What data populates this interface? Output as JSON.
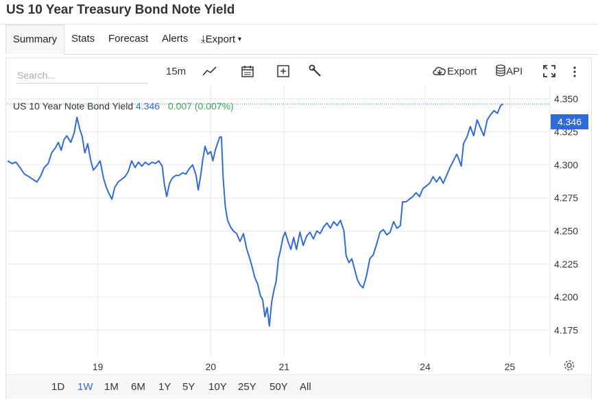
{
  "page": {
    "title": "US 10 Year Treasury Bond Note Yield"
  },
  "tabs": [
    {
      "label": "Summary",
      "active": true
    },
    {
      "label": "Stats",
      "active": false
    },
    {
      "label": "Forecast",
      "active": false
    },
    {
      "label": "Alerts",
      "active": false
    },
    {
      "label": "Export",
      "active": false
    }
  ],
  "toolbar": {
    "search_placeholder": "Search...",
    "interval": "15m",
    "export_label": "Export",
    "api_label": "API",
    "icons": [
      "line-chart-icon",
      "calendar-icon",
      "plus-box-icon",
      "wrench-icon",
      "cloud-download-icon",
      "database-icon",
      "fullscreen-icon",
      "more-vertical-icon"
    ]
  },
  "legend": {
    "name": "US 10 Year Note Bond Yield",
    "value": "4.346",
    "change": "0.007 (0.007%)"
  },
  "price_tag": "4.346",
  "range_buttons": [
    {
      "label": "1D",
      "active": false
    },
    {
      "label": "1W",
      "active": true
    },
    {
      "label": "1M",
      "active": false
    },
    {
      "label": "6M",
      "active": false
    },
    {
      "label": "1Y",
      "active": false
    },
    {
      "label": "5Y",
      "active": false
    },
    {
      "label": "10Y",
      "active": false
    },
    {
      "label": "25Y",
      "active": false
    },
    {
      "label": "50Y",
      "active": false
    },
    {
      "label": "All",
      "active": false
    }
  ],
  "colors": {
    "line": "#2e6ad8",
    "accent": "#2e6ad8",
    "change_positive": "#3aa84a",
    "grid": "#e6e6e6"
  },
  "chart_data": {
    "type": "line",
    "title": "",
    "xlabel": "",
    "ylabel": "",
    "ylim": [
      4.155,
      4.36
    ],
    "y_ticks": [
      "4.175",
      "4.200",
      "4.225",
      "4.250",
      "4.275",
      "4.300",
      "4.325",
      "4.350"
    ],
    "x_ticks": [
      {
        "label": "19",
        "x": 2.0
      },
      {
        "label": "20",
        "x": 4.0
      },
      {
        "label": "21",
        "x": 5.3
      },
      {
        "label": "24",
        "x": 7.8
      },
      {
        "label": "25",
        "x": 9.3
      }
    ],
    "xlim": [
      0.4,
      10.0
    ],
    "grid": true,
    "last_value": 4.346,
    "series": [
      {
        "name": "US 10 Year Note Bond Yield",
        "points": [
          [
            0.4,
            4.303
          ],
          [
            0.48,
            4.301
          ],
          [
            0.55,
            4.302
          ],
          [
            0.62,
            4.298
          ],
          [
            0.7,
            4.293
          ],
          [
            0.78,
            4.291
          ],
          [
            0.85,
            4.289
          ],
          [
            0.92,
            4.287
          ],
          [
            0.98,
            4.291
          ],
          [
            1.05,
            4.298
          ],
          [
            1.12,
            4.301
          ],
          [
            1.18,
            4.309
          ],
          [
            1.25,
            4.313
          ],
          [
            1.3,
            4.317
          ],
          [
            1.35,
            4.311
          ],
          [
            1.4,
            4.319
          ],
          [
            1.45,
            4.322
          ],
          [
            1.52,
            4.317
          ],
          [
            1.58,
            4.324
          ],
          [
            1.63,
            4.336
          ],
          [
            1.68,
            4.327
          ],
          [
            1.72,
            4.322
          ],
          [
            1.77,
            4.309
          ],
          [
            1.82,
            4.316
          ],
          [
            1.87,
            4.304
          ],
          [
            1.92,
            4.296
          ],
          [
            1.98,
            4.299
          ],
          [
            2.04,
            4.303
          ],
          [
            2.1,
            4.29
          ],
          [
            2.15,
            4.283
          ],
          [
            2.2,
            4.278
          ],
          [
            2.25,
            4.274
          ],
          [
            2.3,
            4.283
          ],
          [
            2.36,
            4.287
          ],
          [
            2.42,
            4.289
          ],
          [
            2.48,
            4.291
          ],
          [
            2.54,
            4.295
          ],
          [
            2.6,
            4.303
          ],
          [
            2.66,
            4.298
          ],
          [
            2.72,
            4.302
          ],
          [
            2.78,
            4.299
          ],
          [
            2.84,
            4.302
          ],
          [
            2.9,
            4.3
          ],
          [
            2.96,
            4.302
          ],
          [
            3.02,
            4.301
          ],
          [
            3.08,
            4.303
          ],
          [
            3.14,
            4.299
          ],
          [
            3.18,
            4.285
          ],
          [
            3.22,
            4.276
          ],
          [
            3.27,
            4.286
          ],
          [
            3.32,
            4.29
          ],
          [
            3.38,
            4.292
          ],
          [
            3.44,
            4.292
          ],
          [
            3.5,
            4.294
          ],
          [
            3.56,
            4.293
          ],
          [
            3.62,
            4.297
          ],
          [
            3.68,
            4.3
          ],
          [
            3.74,
            4.292
          ],
          [
            3.78,
            4.281
          ],
          [
            3.82,
            4.291
          ],
          [
            3.86,
            4.304
          ],
          [
            3.9,
            4.314
          ],
          [
            3.95,
            4.308
          ],
          [
            4.0,
            4.31
          ],
          [
            4.04,
            4.303
          ],
          [
            4.08,
            4.311
          ],
          [
            4.12,
            4.316
          ],
          [
            4.16,
            4.321
          ],
          [
            4.19,
            4.321
          ],
          [
            4.22,
            4.29
          ],
          [
            4.26,
            4.268
          ],
          [
            4.3,
            4.258
          ],
          [
            4.35,
            4.253
          ],
          [
            4.4,
            4.25
          ],
          [
            4.46,
            4.248
          ],
          [
            4.52,
            4.242
          ],
          [
            4.58,
            4.248
          ],
          [
            4.64,
            4.236
          ],
          [
            4.7,
            4.228
          ],
          [
            4.74,
            4.222
          ],
          [
            4.78,
            4.215
          ],
          [
            4.83,
            4.21
          ],
          [
            4.88,
            4.201
          ],
          [
            4.92,
            4.198
          ],
          [
            4.96,
            4.185
          ],
          [
            5.0,
            4.192
          ],
          [
            5.04,
            4.178
          ],
          [
            5.08,
            4.196
          ],
          [
            5.12,
            4.205
          ],
          [
            5.16,
            4.212
          ],
          [
            5.2,
            4.229
          ],
          [
            5.24,
            4.236
          ],
          [
            5.28,
            4.245
          ],
          [
            5.32,
            4.249
          ],
          [
            5.37,
            4.242
          ],
          [
            5.42,
            4.236
          ],
          [
            5.47,
            4.245
          ],
          [
            5.52,
            4.236
          ],
          [
            5.58,
            4.249
          ],
          [
            5.64,
            4.239
          ],
          [
            5.7,
            4.246
          ],
          [
            5.76,
            4.249
          ],
          [
            5.82,
            4.244
          ],
          [
            5.88,
            4.25
          ],
          [
            5.94,
            4.248
          ],
          [
            6.0,
            4.253
          ],
          [
            6.06,
            4.256
          ],
          [
            6.12,
            4.252
          ],
          [
            6.18,
            4.257
          ],
          [
            6.24,
            4.254
          ],
          [
            6.3,
            4.258
          ],
          [
            6.36,
            4.25
          ],
          [
            6.4,
            4.231
          ],
          [
            6.45,
            4.226
          ],
          [
            6.5,
            4.229
          ],
          [
            6.55,
            4.221
          ],
          [
            6.6,
            4.213
          ],
          [
            6.65,
            4.209
          ],
          [
            6.7,
            4.207
          ],
          [
            6.76,
            4.216
          ],
          [
            6.82,
            4.229
          ],
          [
            6.88,
            4.232
          ],
          [
            6.94,
            4.24
          ],
          [
            7.0,
            4.249
          ],
          [
            7.06,
            4.251
          ],
          [
            7.12,
            4.247
          ],
          [
            7.18,
            4.249
          ],
          [
            7.24,
            4.257
          ],
          [
            7.3,
            4.252
          ],
          [
            7.36,
            4.254
          ],
          [
            7.4,
            4.272
          ],
          [
            7.46,
            4.272
          ],
          [
            7.52,
            4.274
          ],
          [
            7.58,
            4.276
          ],
          [
            7.64,
            4.279
          ],
          [
            7.7,
            4.276
          ],
          [
            7.76,
            4.282
          ],
          [
            7.82,
            4.284
          ],
          [
            7.88,
            4.286
          ],
          [
            7.94,
            4.291
          ],
          [
            8.0,
            4.287
          ],
          [
            8.06,
            4.291
          ],
          [
            8.12,
            4.286
          ],
          [
            8.18,
            4.292
          ],
          [
            8.24,
            4.298
          ],
          [
            8.3,
            4.303
          ],
          [
            8.36,
            4.308
          ],
          [
            8.4,
            4.304
          ],
          [
            8.44,
            4.299
          ],
          [
            8.48,
            4.316
          ],
          [
            8.54,
            4.321
          ],
          [
            8.6,
            4.329
          ],
          [
            8.66,
            4.322
          ],
          [
            8.72,
            4.334
          ],
          [
            8.78,
            4.328
          ],
          [
            8.84,
            4.322
          ],
          [
            8.9,
            4.334
          ],
          [
            8.96,
            4.338
          ],
          [
            9.02,
            4.341
          ],
          [
            9.08,
            4.339
          ],
          [
            9.14,
            4.345
          ],
          [
            9.18,
            4.346
          ]
        ]
      }
    ]
  }
}
